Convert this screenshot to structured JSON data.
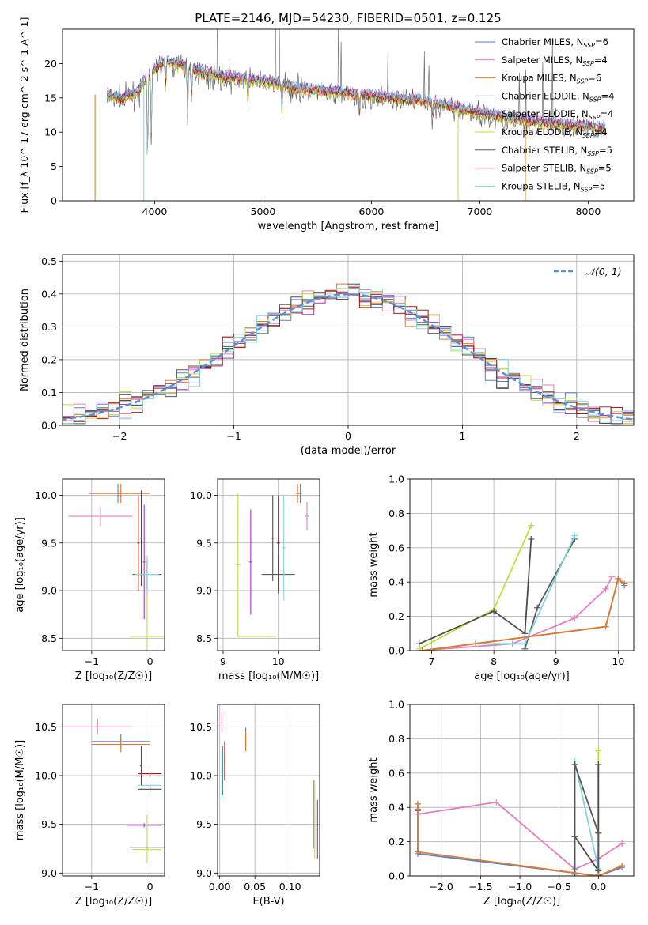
{
  "title": "PLATE=2146, MJD=54230, FIBERID=0501, z=0.125",
  "colors": {
    "chabrier_miles": "#5b7fd1",
    "salpeter_miles": "#e57cc1",
    "kroupa_miles": "#e07b2a",
    "chabrier_elodie": "#4d4d4d",
    "salpeter_elodie": "#a03ab8",
    "kroupa_elodie": "#c4dc3c",
    "chabrier_stelib": "#595959",
    "salpeter_stelib": "#b01818",
    "kroupa_stelib": "#7fd6e0",
    "gaussian": "#5b8fd6",
    "grid": "#b0b0b0"
  },
  "chart_data": [
    {
      "id": "spectrum",
      "type": "line",
      "xlabel": "wavelength [Angstrom, rest frame]",
      "ylabel": "Flux [f_λ 10^-17 erg cm^-2 s^-1 A^-1]",
      "xlim": [
        3150,
        8420
      ],
      "ylim": [
        0,
        25
      ],
      "xticks": [
        4000,
        5000,
        6000,
        7000,
        8000
      ],
      "yticks": [
        0,
        5,
        10,
        15,
        20
      ],
      "legend_position": "top-right",
      "legend": [
        {
          "label": "Chabrier MILES, N",
          "sub": "SSP",
          "suffix": "=6",
          "color_key": "chabrier_miles"
        },
        {
          "label": "Salpeter MILES, N",
          "sub": "SSP",
          "suffix": "=4",
          "color_key": "salpeter_miles"
        },
        {
          "label": "Kroupa MILES, N",
          "sub": "SSP",
          "suffix": "=6",
          "color_key": "kroupa_miles"
        },
        {
          "label": "Chabrier ELODIE, N",
          "sub": "SSP",
          "suffix": "=4",
          "color_key": "chabrier_elodie"
        },
        {
          "label": "Salpeter ELODIE, N",
          "sub": "SSP",
          "suffix": "=4",
          "color_key": "salpeter_elodie"
        },
        {
          "label": "Kroupa ELODIE, N",
          "sub": "SSP",
          "suffix": "=4",
          "color_key": "kroupa_elodie"
        },
        {
          "label": "Chabrier STELIB, N",
          "sub": "SSP",
          "suffix": "=5",
          "color_key": "chabrier_stelib"
        },
        {
          "label": "Salpeter STELIB, N",
          "sub": "SSP",
          "suffix": "=5",
          "color_key": "salpeter_stelib"
        },
        {
          "label": "Kroupa STELIB, N",
          "sub": "SSP",
          "suffix": "=5",
          "color_key": "kroupa_stelib"
        }
      ],
      "continuum": {
        "x": [
          3550,
          3700,
          3850,
          3950,
          4100,
          4300,
          4500,
          4700,
          5000,
          5300,
          5600,
          5900,
          6200,
          6500,
          6800,
          7100,
          7400,
          7700,
          8000,
          8150
        ],
        "y": [
          15.5,
          15.0,
          16.0,
          18.5,
          20.5,
          19.5,
          18.5,
          18.0,
          17.5,
          16.5,
          16.0,
          15.5,
          15.0,
          14.5,
          13.5,
          12.5,
          11.8,
          11.2,
          10.8,
          10.5
        ]
      },
      "absorption_lines": [
        {
          "x": 3934,
          "depth": 12
        },
        {
          "x": 3969,
          "depth": 10
        },
        {
          "x": 4102,
          "depth": 4
        },
        {
          "x": 4304,
          "depth": 7
        },
        {
          "x": 4341,
          "depth": 4
        },
        {
          "x": 4861,
          "depth": 3
        },
        {
          "x": 5175,
          "depth": 4
        },
        {
          "x": 5890,
          "depth": 3
        },
        {
          "x": 6563,
          "depth": 2
        }
      ],
      "cutoffs": [
        {
          "x": 3450,
          "color_key": "kroupa_miles"
        },
        {
          "x": 3900,
          "color_key": "kroupa_stelib"
        },
        {
          "x": 6800,
          "color_key": "kroupa_elodie"
        },
        {
          "x": 7420,
          "color_key": "kroupa_miles"
        }
      ]
    },
    {
      "id": "residuals",
      "type": "line",
      "xlabel": "(data-model)/error",
      "ylabel": "Normed distribution",
      "xlim": [
        -2.5,
        2.5
      ],
      "ylim": [
        0,
        0.52
      ],
      "xticks": [
        -2,
        -1,
        0,
        1,
        2
      ],
      "yticks": [
        0.0,
        0.1,
        0.2,
        0.3,
        0.4,
        0.5
      ],
      "legend_label": "𝒩(0, 1)",
      "legend_position": "top-right",
      "bin_width": 0.1,
      "gaussian": {
        "mu": 0,
        "sigma": 1
      }
    },
    {
      "id": "age_vs_z",
      "type": "scatter",
      "xlabel": "Z [log₁₀(Z/Z☉)]",
      "ylabel": "age  [log₁₀(age/yr)]",
      "xlim": [
        -1.5,
        0.25
      ],
      "ylim": [
        8.37,
        10.17
      ],
      "xticks": [
        -1,
        0
      ],
      "yticks": [
        8.5,
        9.0,
        9.5,
        10.0
      ],
      "points": [
        {
          "x": -0.55,
          "xerr": 0.5,
          "y": 10.02,
          "yerr": 0.1,
          "color_key": "chabrier_miles"
        },
        {
          "x": -0.85,
          "xerr": 0.55,
          "y": 9.78,
          "yerr": 0.1,
          "color_key": "salpeter_miles"
        },
        {
          "x": -0.5,
          "xerr": 0.5,
          "y": 10.02,
          "yerr": 0.1,
          "color_key": "kroupa_miles"
        },
        {
          "x": -0.15,
          "xerr": 0.02,
          "y": 9.55,
          "yerr": 0.5,
          "color_key": "chabrier_elodie"
        },
        {
          "x": -0.1,
          "xerr": 0.02,
          "y": 9.3,
          "yerr": 0.6,
          "color_key": "salpeter_elodie"
        },
        {
          "x": -0.05,
          "xerr": 0.3,
          "y": 8.52,
          "yerr": 0.5,
          "color_key": "kroupa_elodie"
        },
        {
          "x": -0.05,
          "xerr": 0.25,
          "y": 9.17,
          "yerr": 0.15,
          "color_key": "chabrier_stelib"
        },
        {
          "x": -0.2,
          "xerr": 0.02,
          "y": 9.5,
          "yerr": 0.5,
          "color_key": "salpeter_stelib"
        },
        {
          "x": -0.05,
          "xerr": 0.2,
          "y": 9.17,
          "yerr": 0.2,
          "color_key": "kroupa_stelib"
        }
      ]
    },
    {
      "id": "age_vs_mass",
      "type": "scatter",
      "xlabel": "mass [log₁₀(M/M☉)]",
      "ylabel": "",
      "xlim": [
        8.9,
        10.75
      ],
      "ylim": [
        8.37,
        10.17
      ],
      "xticks": [
        9,
        10
      ],
      "yticks": [
        8.5,
        9.0,
        9.5,
        10.0
      ],
      "points": [
        {
          "x": 10.4,
          "xerr": 0.03,
          "y": 10.02,
          "yerr": 0.1,
          "color_key": "chabrier_miles"
        },
        {
          "x": 10.52,
          "xerr": 0.03,
          "y": 9.78,
          "yerr": 0.15,
          "color_key": "salpeter_miles"
        },
        {
          "x": 10.35,
          "xerr": 0.03,
          "y": 10.02,
          "yerr": 0.1,
          "color_key": "kroupa_miles"
        },
        {
          "x": 9.9,
          "xerr": 0.03,
          "y": 9.55,
          "yerr": 0.45,
          "color_key": "chabrier_elodie"
        },
        {
          "x": 9.5,
          "xerr": 0.03,
          "y": 9.3,
          "yerr": 0.55,
          "color_key": "salpeter_elodie"
        },
        {
          "x": 9.27,
          "xerr": 0.03,
          "y": 9.27,
          "yerr": 0.75,
          "color_key": "kroupa_elodie"
        },
        {
          "x": 10.0,
          "xerr": 0.3,
          "y": 9.17,
          "yerr": 0.2,
          "color_key": "chabrier_stelib"
        },
        {
          "x": 10.0,
          "xerr": 0.03,
          "y": 9.5,
          "yerr": 0.5,
          "color_key": "salpeter_stelib"
        },
        {
          "x": 10.1,
          "xerr": 0.03,
          "y": 9.45,
          "yerr": 0.55,
          "color_key": "kroupa_stelib"
        }
      ],
      "hbars": [
        {
          "x": 9.6,
          "xerr": 0.35,
          "y": 8.52,
          "color_key": "kroupa_elodie"
        }
      ]
    },
    {
      "id": "weight_vs_age",
      "type": "line",
      "xlabel": "age  [log₁₀(age/yr)]",
      "ylabel": "mass weight",
      "xlim": [
        6.65,
        10.25
      ],
      "ylim": [
        0,
        1.0
      ],
      "xticks": [
        7,
        8,
        9,
        10
      ],
      "yticks": [
        0.0,
        0.2,
        0.4,
        0.6,
        0.8,
        1.0
      ],
      "series": [
        {
          "color_key": "salpeter_miles",
          "x": [
            6.8,
            8.3,
            9.3,
            9.8,
            9.9
          ],
          "y": [
            0.0,
            0.04,
            0.19,
            0.36,
            0.43
          ]
        },
        {
          "color_key": "kroupa_elodie",
          "x": [
            6.8,
            8.0,
            8.6
          ],
          "y": [
            0.01,
            0.24,
            0.73
          ]
        },
        {
          "color_key": "chabrier_elodie",
          "x": [
            6.8,
            8.0,
            8.5,
            8.6
          ],
          "y": [
            0.04,
            0.23,
            0.1,
            0.65
          ]
        },
        {
          "color_key": "chabrier_stelib",
          "x": [
            8.5,
            8.7,
            9.3
          ],
          "y": [
            0.01,
            0.25,
            0.65
          ]
        },
        {
          "color_key": "kroupa_stelib",
          "x": [
            7.7,
            8.5,
            9.3
          ],
          "y": [
            0.04,
            0.04,
            0.67
          ]
        },
        {
          "color_key": "chabrier_miles",
          "x": [
            6.85,
            9.8,
            10.0,
            10.1
          ],
          "y": [
            0.0,
            0.14,
            0.42,
            0.38
          ]
        },
        {
          "color_key": "kroupa_miles",
          "x": [
            6.85,
            9.8,
            10.0,
            10.1
          ],
          "y": [
            0.0,
            0.14,
            0.42,
            0.39
          ]
        }
      ]
    },
    {
      "id": "mass_vs_z",
      "type": "scatter",
      "xlabel": "Z [log₁₀(Z/Z☉)]",
      "ylabel": "mass [log₁₀(M/M☉)]",
      "xlim": [
        -1.5,
        0.25
      ],
      "ylim": [
        8.97,
        10.73
      ],
      "xticks": [
        -1,
        0
      ],
      "yticks": [
        9.0,
        9.5,
        10.0,
        10.5
      ],
      "points": [
        {
          "x": -0.9,
          "xerr": 0.6,
          "y": 10.5,
          "yerr": 0.08,
          "color_key": "salpeter_miles"
        },
        {
          "x": -0.5,
          "xerr": 0.5,
          "y": 10.35,
          "yerr": 0.08,
          "color_key": "chabrier_miles"
        },
        {
          "x": -0.5,
          "xerr": 0.5,
          "y": 10.32,
          "yerr": 0.08,
          "color_key": "kroupa_miles"
        },
        {
          "x": -0.15,
          "xerr": 0.02,
          "y": 10.1,
          "yerr": 0.2,
          "color_key": "chabrier_elodie"
        },
        {
          "x": 0.0,
          "xerr": 0.2,
          "y": 10.02,
          "yerr": 0.03,
          "color_key": "salpeter_stelib"
        },
        {
          "x": 0.0,
          "xerr": 0.2,
          "y": 9.9,
          "yerr": 0.03,
          "color_key": "kroupa_stelib"
        },
        {
          "x": 0.0,
          "xerr": 0.2,
          "y": 9.86,
          "yerr": 0.03,
          "color_key": "chabrier_elodie"
        },
        {
          "x": -0.1,
          "xerr": 0.3,
          "y": 9.49,
          "yerr": 0.02,
          "color_key": "salpeter_elodie"
        },
        {
          "x": -0.05,
          "xerr": 0.3,
          "y": 9.26,
          "yerr": 0.02,
          "color_key": "chabrier_stelib"
        },
        {
          "x": -0.05,
          "xerr": 0.25,
          "y": 9.24,
          "yerr": 0.02,
          "color_key": "kroupa_elodie"
        }
      ],
      "vlines": [
        {
          "x": -0.05,
          "y0": 9.1,
          "y1": 9.6,
          "color_key": "kroupa_elodie"
        }
      ]
    },
    {
      "id": "mass_vs_ebv",
      "type": "scatter",
      "xlabel": "E(B-V)",
      "ylabel": "",
      "xlim": [
        -0.003,
        0.142
      ],
      "ylim": [
        8.97,
        10.73
      ],
      "xticks": [
        0.0,
        0.05,
        0.1
      ],
      "xticklabels": [
        "0.00",
        "0.05",
        "0.10"
      ],
      "yticks": [
        9.0,
        9.5,
        10.0,
        10.5
      ],
      "points": [
        {
          "x": 0.003,
          "xerr": 0.0006,
          "y": 10.55,
          "yerr": 0.1,
          "color_key": "salpeter_miles"
        },
        {
          "x": 0.037,
          "xerr": 0.0006,
          "y": 10.37,
          "yerr": 0.12,
          "color_key": "chabrier_miles"
        },
        {
          "x": 0.037,
          "xerr": 0.0006,
          "y": 10.35,
          "yerr": 0.1,
          "color_key": "kroupa_miles"
        },
        {
          "x": 0.007,
          "xerr": 0.0006,
          "y": 10.15,
          "yerr": 0.2,
          "color_key": "salpeter_stelib"
        },
        {
          "x": 0.004,
          "xerr": 0.0006,
          "y": 10.05,
          "yerr": 0.25,
          "color_key": "chabrier_stelib"
        },
        {
          "x": 0.003,
          "xerr": 0.0006,
          "y": 10.0,
          "yerr": 0.25,
          "color_key": "kroupa_stelib"
        },
        {
          "x": 0.135,
          "xerr": 0.0006,
          "y": 9.55,
          "yerr": 0.4,
          "color_key": "kroupa_elodie"
        },
        {
          "x": 0.139,
          "xerr": 0.0006,
          "y": 9.45,
          "yerr": 0.3,
          "color_key": "salpeter_elodie"
        },
        {
          "x": 0.133,
          "xerr": 0.0006,
          "y": 9.6,
          "yerr": 0.35,
          "color_key": "chabrier_elodie"
        }
      ]
    },
    {
      "id": "weight_vs_z",
      "type": "line",
      "xlabel": "Z [log₁₀(Z/Z☉)]",
      "ylabel": "mass weight",
      "xlim": [
        -2.4,
        0.45
      ],
      "ylim": [
        0,
        1.0
      ],
      "xticks": [
        -2.0,
        -1.5,
        -1.0,
        -0.5,
        0.0
      ],
      "xticklabels": [
        "−2.0",
        "−1.5",
        "−1.0",
        "−0.5",
        "0.0"
      ],
      "yticks": [
        0.0,
        0.2,
        0.4,
        0.6,
        0.8,
        1.0
      ],
      "series": [
        {
          "color_key": "salpeter_miles",
          "x": [
            -2.3,
            -1.3,
            -0.3,
            0.0,
            0.3
          ],
          "y": [
            0.36,
            0.43,
            0.04,
            0.1,
            0.19
          ]
        },
        {
          "color_key": "kroupa_elodie",
          "x": [
            -0.3,
            -0.3,
            0.0,
            0.0,
            0.0
          ],
          "y": [
            0.01,
            0.23,
            0.03,
            0.73,
            0.25
          ]
        },
        {
          "color_key": "chabrier_elodie",
          "x": [
            -0.3,
            -0.3,
            0.0,
            0.0,
            0.0
          ],
          "y": [
            0.04,
            0.23,
            0.03,
            0.65,
            0.1
          ]
        },
        {
          "color_key": "kroupa_stelib",
          "x": [
            -0.3,
            -0.3,
            0.0,
            0.0,
            0.0
          ],
          "y": [
            0.04,
            0.67,
            0.04,
            0.04,
            0.01
          ]
        },
        {
          "color_key": "chabrier_stelib",
          "x": [
            -0.3,
            -0.3,
            0.0,
            0.0,
            0.0
          ],
          "y": [
            0.01,
            0.65,
            0.25,
            0.01,
            0.0
          ]
        },
        {
          "color_key": "chabrier_miles",
          "x": [
            -2.3,
            -2.3,
            -2.3,
            0.0,
            0.3
          ],
          "y": [
            0.42,
            0.38,
            0.13,
            0.0,
            0.05
          ]
        },
        {
          "color_key": "kroupa_miles",
          "x": [
            -2.3,
            -2.3,
            -2.3,
            0.0,
            0.3
          ],
          "y": [
            0.42,
            0.39,
            0.14,
            0.0,
            0.06
          ]
        }
      ]
    }
  ]
}
